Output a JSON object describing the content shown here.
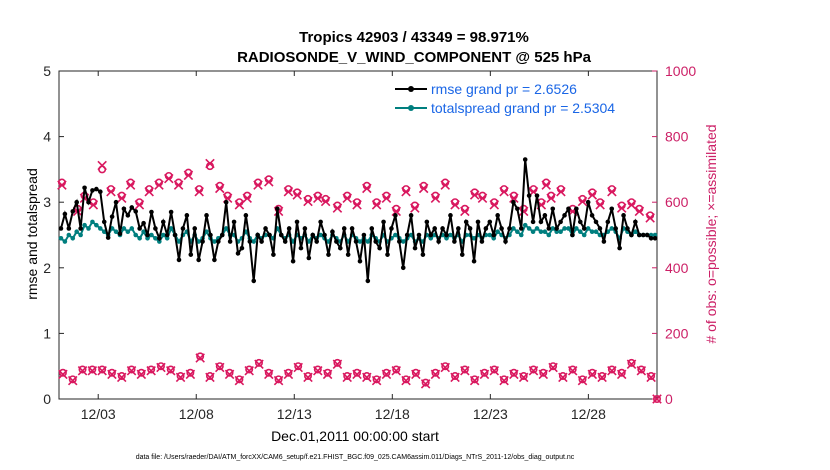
{
  "chart_data": {
    "type": "line",
    "title_line1": "Tropics 42903 / 43349 = 98.971%",
    "title_line2": "RADIOSONDE_V_WIND_COMPONENT @ 525 hPa",
    "xlabel": "Dec.01,2011 00:00:00 start",
    "ylabel_left": "rmse and totalspread",
    "ylabel_right": "# of obs: o=possible; ×=assimilated",
    "footer": "data file: /Users/raeder/DAI/ATM_forcXX/CAM6_setup/f.e21.FHIST_BGC.f09_025.CAM6assim.011/Diags_NTrS_2011-12/obs_diag_output.nc",
    "xlim": [
      1.0,
      31.5
    ],
    "ylim_left": [
      0,
      5
    ],
    "ylim_right": [
      0,
      1000
    ],
    "x_ticks": [
      3,
      8,
      13,
      18,
      23,
      28
    ],
    "x_tick_labels": [
      "12/03",
      "12/08",
      "12/13",
      "12/18",
      "12/23",
      "12/28"
    ],
    "y_left_ticks": [
      0,
      1,
      2,
      3,
      4,
      5
    ],
    "y_left_tick_labels": [
      "0",
      "1",
      "2",
      "3",
      "4",
      "5"
    ],
    "y_right_ticks": [
      0,
      200,
      400,
      600,
      800,
      1000
    ],
    "y_right_tick_labels": [
      "0",
      "200",
      "400",
      "600",
      "800",
      "1000"
    ],
    "legend_position": "top-right",
    "colors": {
      "rmse": "#000000",
      "spread": "#007f7f",
      "obs": "#d9185f",
      "right_axis": "#cc1f66"
    },
    "series": [
      {
        "name": "rmse grand pr = 2.6526",
        "axis": "left",
        "values": [
          2.6,
          2.82,
          2.6,
          2.86,
          3.0,
          2.6,
          3.22,
          3.0,
          3.18,
          3.2,
          3.16,
          2.7,
          2.46,
          2.78,
          3.0,
          2.52,
          2.9,
          2.8,
          2.92,
          2.86,
          2.6,
          2.68,
          2.5,
          2.85,
          2.6,
          2.45,
          2.7,
          2.5,
          2.85,
          2.5,
          2.12,
          2.6,
          2.8,
          2.2,
          2.6,
          2.12,
          2.4,
          2.8,
          2.5,
          2.12,
          2.4,
          2.5,
          3.0,
          2.4,
          2.7,
          2.22,
          2.3,
          2.8,
          2.4,
          1.8,
          2.5,
          2.4,
          2.6,
          2.5,
          2.2,
          2.9,
          2.5,
          2.4,
          2.6,
          2.1,
          2.7,
          2.3,
          2.6,
          2.15,
          2.5,
          2.4,
          2.7,
          2.5,
          2.2,
          2.55,
          2.4,
          2.3,
          2.6,
          2.2,
          2.6,
          2.4,
          2.1,
          2.5,
          1.8,
          2.6,
          2.4,
          2.3,
          2.7,
          2.2,
          2.6,
          2.8,
          2.4,
          2.0,
          2.5,
          2.8,
          2.3,
          2.5,
          2.2,
          2.7,
          2.5,
          2.6,
          2.4,
          2.6,
          2.5,
          2.8,
          2.4,
          2.6,
          2.2,
          2.7,
          2.6,
          2.1,
          2.7,
          2.4,
          2.6,
          2.7,
          2.5,
          2.8,
          2.6,
          2.4,
          2.6,
          3.0,
          2.9,
          2.6,
          3.65,
          3.1,
          2.7,
          3.1,
          2.7,
          2.8,
          2.6,
          2.9,
          2.6,
          2.7,
          2.8,
          2.9,
          2.5,
          2.9,
          2.7,
          2.6,
          3.0,
          2.8,
          2.7,
          2.6,
          2.4,
          2.7,
          2.9,
          2.6,
          2.3,
          2.8,
          2.6,
          2.5,
          2.7,
          2.5,
          2.5,
          2.5,
          2.45,
          2.45
        ]
      },
      {
        "name": "totalspread grand pr = 2.5304",
        "axis": "left",
        "values": [
          2.45,
          2.4,
          2.5,
          2.45,
          2.55,
          2.5,
          2.65,
          2.6,
          2.7,
          2.65,
          2.6,
          2.55,
          2.5,
          2.6,
          2.55,
          2.5,
          2.6,
          2.55,
          2.6,
          2.5,
          2.45,
          2.55,
          2.45,
          2.5,
          2.45,
          2.4,
          2.5,
          2.45,
          2.6,
          2.5,
          2.4,
          2.5,
          2.55,
          2.4,
          2.5,
          2.4,
          2.45,
          2.55,
          2.45,
          2.4,
          2.45,
          2.5,
          2.6,
          2.5,
          2.5,
          2.4,
          2.45,
          2.55,
          2.45,
          2.4,
          2.5,
          2.45,
          2.5,
          2.5,
          2.45,
          2.6,
          2.5,
          2.45,
          2.5,
          2.4,
          2.5,
          2.45,
          2.5,
          2.4,
          2.5,
          2.45,
          2.5,
          2.45,
          2.4,
          2.5,
          2.45,
          2.4,
          2.5,
          2.4,
          2.5,
          2.45,
          2.4,
          2.45,
          2.4,
          2.5,
          2.45,
          2.4,
          2.5,
          2.4,
          2.45,
          2.5,
          2.45,
          2.4,
          2.45,
          2.5,
          2.4,
          2.45,
          2.4,
          2.5,
          2.45,
          2.5,
          2.45,
          2.5,
          2.45,
          2.5,
          2.45,
          2.5,
          2.4,
          2.5,
          2.5,
          2.45,
          2.5,
          2.45,
          2.5,
          2.5,
          2.45,
          2.55,
          2.5,
          2.45,
          2.5,
          2.6,
          2.55,
          2.5,
          2.65,
          2.6,
          2.55,
          2.6,
          2.55,
          2.55,
          2.5,
          2.6,
          2.55,
          2.55,
          2.6,
          2.6,
          2.5,
          2.6,
          2.55,
          2.5,
          2.6,
          2.55,
          2.55,
          2.5,
          2.5,
          2.55,
          2.6,
          2.55,
          2.45,
          2.6,
          2.55,
          2.5,
          2.55,
          2.5,
          2.5,
          2.5,
          2.5,
          2.5
        ]
      },
      {
        "name": "obs possible (upper)",
        "axis": "right",
        "marker": "circle",
        "x": [
          1.15,
          1.95,
          2.3,
          2.75,
          3.2,
          3.65,
          4.2,
          4.65,
          5.1,
          5.6,
          6.1,
          6.6,
          7.1,
          7.6,
          8.15,
          8.7,
          9.2,
          9.6,
          10.2,
          10.6,
          11.15,
          11.7,
          12.2,
          12.7,
          13.15,
          13.7,
          14.2,
          14.6,
          15.2,
          15.7,
          16.2,
          16.7,
          17.2,
          17.7,
          18.2,
          18.7,
          19.15,
          19.6,
          20.2,
          20.7,
          21.2,
          21.7,
          22.2,
          22.6,
          23.2,
          23.7,
          24.2,
          24.7,
          25.2,
          25.6,
          25.85,
          26.1,
          26.6,
          27.2,
          27.7,
          28.2,
          28.6,
          29.2,
          29.7,
          30.2,
          30.6,
          31.15
        ],
        "values": [
          660,
          580,
          620,
          600,
          700,
          640,
          620,
          660,
          600,
          640,
          660,
          680,
          660,
          690,
          640,
          710,
          650,
          620,
          600,
          620,
          660,
          670,
          580,
          640,
          630,
          610,
          620,
          610,
          590,
          620,
          600,
          650,
          600,
          620,
          580,
          640,
          590,
          650,
          620,
          660,
          600,
          580,
          630,
          620,
          600,
          640,
          620,
          580,
          640,
          600,
          660,
          620,
          640,
          580,
          610,
          630,
          600,
          640,
          590,
          600,
          580,
          560
        ]
      },
      {
        "name": "obs assimilated (upper)",
        "axis": "right",
        "marker": "cross",
        "x": [
          1.15,
          1.95,
          2.3,
          2.75,
          3.2,
          3.65,
          4.2,
          4.65,
          5.1,
          5.6,
          6.1,
          6.6,
          7.1,
          7.6,
          8.15,
          8.7,
          9.2,
          9.6,
          10.2,
          10.6,
          11.15,
          11.7,
          12.2,
          12.7,
          13.15,
          13.7,
          14.2,
          14.6,
          15.2,
          15.7,
          16.2,
          16.7,
          17.2,
          17.7,
          18.2,
          18.7,
          19.15,
          19.6,
          20.2,
          20.7,
          21.2,
          21.7,
          22.2,
          22.6,
          23.2,
          23.7,
          24.2,
          24.7,
          25.2,
          25.6,
          25.85,
          26.1,
          26.6,
          27.2,
          27.7,
          28.2,
          28.6,
          29.2,
          29.7,
          30.2,
          30.6,
          31.15
        ],
        "values": [
          652,
          572,
          612,
          592,
          712,
          632,
          612,
          652,
          592,
          632,
          652,
          672,
          652,
          682,
          632,
          718,
          642,
          612,
          592,
          612,
          652,
          662,
          572,
          632,
          622,
          602,
          612,
          602,
          582,
          612,
          592,
          642,
          592,
          612,
          572,
          632,
          582,
          642,
          612,
          652,
          592,
          572,
          622,
          612,
          592,
          632,
          612,
          572,
          632,
          592,
          652,
          612,
          632,
          572,
          602,
          622,
          592,
          632,
          582,
          592,
          572,
          552
        ]
      },
      {
        "name": "obs possible (lower)",
        "axis": "right",
        "marker": "circle",
        "x": [
          1.2,
          1.7,
          2.2,
          2.7,
          3.2,
          3.7,
          4.2,
          4.7,
          5.2,
          5.7,
          6.2,
          6.7,
          7.2,
          7.7,
          8.2,
          8.7,
          9.2,
          9.7,
          10.2,
          10.7,
          11.2,
          11.7,
          12.2,
          12.7,
          13.2,
          13.7,
          14.2,
          14.7,
          15.2,
          15.7,
          16.2,
          16.7,
          17.2,
          17.7,
          18.2,
          18.7,
          19.2,
          19.7,
          20.2,
          20.7,
          21.2,
          21.7,
          22.2,
          22.7,
          23.2,
          23.7,
          24.2,
          24.7,
          25.2,
          25.7,
          26.2,
          26.7,
          27.2,
          27.7,
          28.2,
          28.7,
          29.2,
          29.7,
          30.2,
          30.7,
          31.2,
          31.5
        ],
        "values": [
          80,
          60,
          90,
          90,
          90,
          80,
          70,
          90,
          80,
          90,
          100,
          90,
          70,
          80,
          130,
          70,
          100,
          80,
          60,
          90,
          110,
          80,
          60,
          80,
          100,
          70,
          90,
          80,
          110,
          70,
          80,
          70,
          60,
          80,
          90,
          60,
          80,
          50,
          80,
          100,
          70,
          90,
          60,
          80,
          90,
          60,
          80,
          70,
          90,
          80,
          100,
          70,
          90,
          60,
          80,
          70,
          90,
          80,
          110,
          90,
          70,
          0
        ]
      },
      {
        "name": "obs assimilated (lower)",
        "axis": "right",
        "marker": "cross",
        "x": [
          1.2,
          1.7,
          2.2,
          2.7,
          3.2,
          3.7,
          4.2,
          4.7,
          5.2,
          5.7,
          6.2,
          6.7,
          7.2,
          7.7,
          8.2,
          8.7,
          9.2,
          9.7,
          10.2,
          10.7,
          11.2,
          11.7,
          12.2,
          12.7,
          13.2,
          13.7,
          14.2,
          14.7,
          15.2,
          15.7,
          16.2,
          16.7,
          17.2,
          17.7,
          18.2,
          18.7,
          19.2,
          19.7,
          20.2,
          20.7,
          21.2,
          21.7,
          22.2,
          22.7,
          23.2,
          23.7,
          24.2,
          24.7,
          25.2,
          25.7,
          26.2,
          26.7,
          27.2,
          27.7,
          28.2,
          28.7,
          29.2,
          29.7,
          30.2,
          30.7,
          31.2,
          31.5
        ],
        "values": [
          75,
          56,
          86,
          86,
          86,
          75,
          66,
          86,
          75,
          86,
          96,
          86,
          66,
          75,
          125,
          66,
          96,
          75,
          56,
          86,
          106,
          75,
          56,
          75,
          96,
          66,
          86,
          75,
          106,
          66,
          75,
          66,
          56,
          75,
          86,
          56,
          75,
          46,
          75,
          96,
          66,
          86,
          56,
          75,
          86,
          56,
          75,
          66,
          86,
          75,
          96,
          66,
          86,
          56,
          75,
          66,
          86,
          75,
          106,
          86,
          66,
          0
        ]
      }
    ]
  }
}
